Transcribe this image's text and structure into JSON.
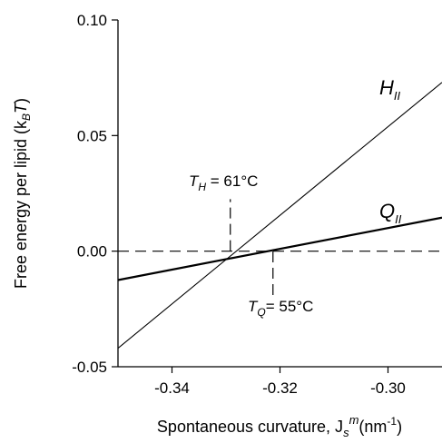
{
  "chart_data": {
    "type": "line",
    "xlim": [
      -0.35,
      -0.29
    ],
    "ylim": [
      -0.05,
      0.1
    ],
    "x_ticks": [
      -0.34,
      -0.32,
      -0.3
    ],
    "x_tick_labels": [
      "-0.34",
      "-0.32",
      "-0.30"
    ],
    "y_ticks": [
      -0.05,
      0.0,
      0.05,
      0.1
    ],
    "y_tick_labels": [
      "-0.05",
      "0.00",
      "0.05",
      "0.10"
    ],
    "xlabel": {
      "main": "Spontaneous curvature, J",
      "sub": "s",
      "sup": "m",
      "unit_open": "(nm",
      "unit_sup": "-1",
      "unit_close": ")"
    },
    "ylabel": {
      "main": "Free energy per lipid (k",
      "sub": "B",
      "var": "T",
      "close": ")"
    },
    "grid": false,
    "legend": "none",
    "series": [
      {
        "name": "H",
        "subscript": "II",
        "x": [
          -0.35,
          -0.29
        ],
        "y": [
          -0.042,
          0.073
        ],
        "color": "#000000",
        "stroke": "thin"
      },
      {
        "name": "Q",
        "subscript": "II",
        "x": [
          -0.35,
          -0.29
        ],
        "y": [
          -0.0125,
          0.0145
        ],
        "color": "#000000",
        "stroke": "thick"
      }
    ],
    "reference_line": {
      "y": 0.0,
      "style": "dashed"
    },
    "annotations": [
      {
        "id": "th",
        "text_main": "T",
        "text_sub": "H",
        "text_rest": " = 61°C",
        "x": -0.3292,
        "line_y": [
          0.0,
          0.0225
        ]
      },
      {
        "id": "tq",
        "text_main": "T",
        "text_sub": "Q",
        "text_rest": "= 55°C",
        "x": -0.3213,
        "line_y": [
          -0.019,
          0.0
        ]
      }
    ]
  }
}
